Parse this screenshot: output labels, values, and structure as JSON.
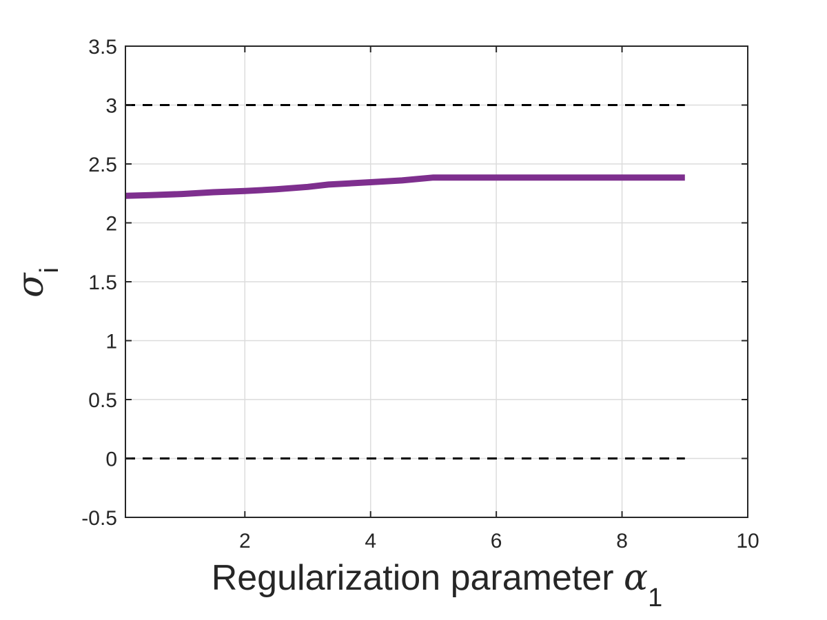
{
  "chart_data": {
    "type": "line",
    "xlabel": "Regularization parameter α_1",
    "xlabel_text": "Regularization parameter ",
    "xlabel_symbol": "α",
    "xlabel_subscript": "1",
    "ylabel": "σ_i",
    "ylabel_symbol": "σ",
    "ylabel_subscript": "i",
    "xlim": [
      0.1,
      10
    ],
    "ylim": [
      -0.5,
      3.5
    ],
    "xticks": [
      2,
      4,
      6,
      8,
      10
    ],
    "xtick_labels": [
      "2",
      "4",
      "6",
      "8",
      "10"
    ],
    "yticks": [
      -0.5,
      0,
      0.5,
      1,
      1.5,
      2,
      2.5,
      3,
      3.5
    ],
    "ytick_labels": [
      "-0.5",
      "0",
      "0.5",
      "1",
      "1.5",
      "2",
      "2.5",
      "3",
      "3.5"
    ],
    "grid": true,
    "series": [
      {
        "color": "#7e2f8e",
        "style": "solid",
        "x": [
          0.1,
          0.5,
          1.0,
          1.5,
          2.0,
          2.5,
          3.0,
          3.33,
          4.0,
          4.5,
          5.0,
          6.0,
          7.0,
          8.0,
          9.0
        ],
        "y": [
          2.23,
          2.235,
          2.245,
          2.26,
          2.27,
          2.285,
          2.305,
          2.325,
          2.345,
          2.36,
          2.385,
          2.385,
          2.385,
          2.385,
          2.385
        ]
      },
      {
        "color": "#000000",
        "style": "dashed",
        "x": [
          0.1,
          9.0
        ],
        "y": [
          3,
          3
        ]
      },
      {
        "color": "#000000",
        "style": "dashed",
        "x": [
          0.1,
          9.0
        ],
        "y": [
          0,
          0
        ]
      }
    ]
  }
}
